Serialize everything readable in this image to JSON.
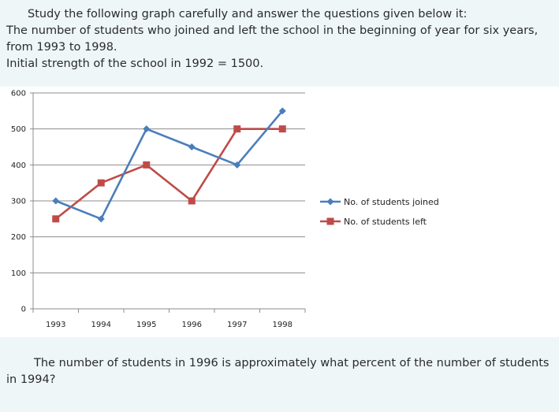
{
  "intro": {
    "lead": "Study the following graph carefully and answer the questions given below it:",
    "description": "The number of students who joined and left the school in the beginning of year for six years, from 1993 to 1998.",
    "initial": "Initial strength of the school in 1992 = 1500."
  },
  "question": {
    "text": "The number of students in 1996 is approximately what percent of the number of students in 1994?"
  },
  "chart_data": {
    "type": "line",
    "title": "",
    "xlabel": "",
    "ylabel": "",
    "categories": [
      "1993",
      "1994",
      "1995",
      "1996",
      "1997",
      "1998"
    ],
    "ylim": [
      0,
      600
    ],
    "yticks": [
      0,
      100,
      200,
      300,
      400,
      500,
      600
    ],
    "grid": true,
    "legend_position": "right",
    "series": [
      {
        "name": "No. of students joined",
        "values": [
          300,
          250,
          500,
          450,
          400,
          550
        ],
        "color": "#4a7ebb",
        "marker": "diamond"
      },
      {
        "name": "No. of students left",
        "values": [
          250,
          350,
          400,
          300,
          500,
          500
        ],
        "color": "#be4b48",
        "marker": "square"
      }
    ]
  }
}
